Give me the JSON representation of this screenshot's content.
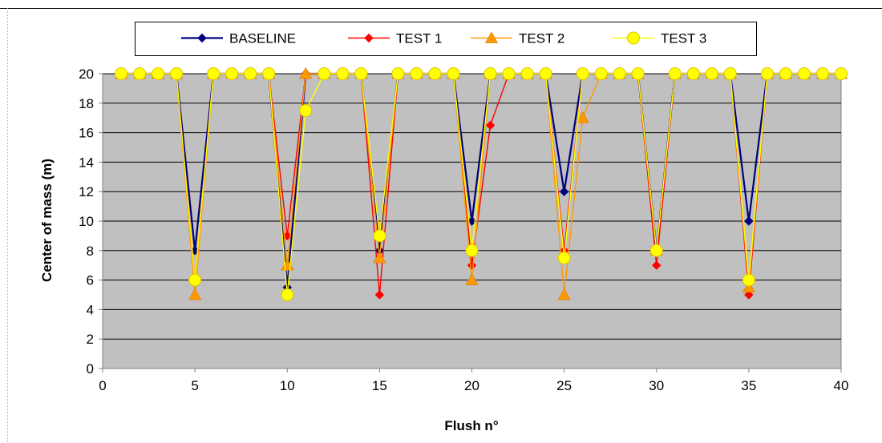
{
  "chart_data": {
    "type": "line",
    "title": "",
    "xlabel": "Flush n°",
    "ylabel": "Center of mass (m)",
    "xlim": [
      0,
      40
    ],
    "ylim": [
      0,
      20
    ],
    "x_ticks": [
      0,
      5,
      10,
      15,
      20,
      25,
      30,
      35,
      40
    ],
    "y_ticks": [
      0,
      2,
      4,
      6,
      8,
      10,
      12,
      14,
      16,
      18,
      20
    ],
    "grid": "horizontal",
    "legend_position": "top",
    "plot_background": "#c0c0c0",
    "series": [
      {
        "name": "BASELINE",
        "color": "#000080",
        "marker": "diamond",
        "points": [
          [
            1,
            20
          ],
          [
            2,
            20
          ],
          [
            3,
            20
          ],
          [
            4,
            20
          ],
          [
            5,
            8
          ],
          [
            6,
            20
          ],
          [
            7,
            20
          ],
          [
            8,
            20
          ],
          [
            9,
            20
          ],
          [
            10,
            5.5
          ],
          [
            11,
            20
          ],
          [
            12,
            20
          ],
          [
            13,
            20
          ],
          [
            14,
            20
          ],
          [
            15,
            8
          ],
          [
            16,
            20
          ],
          [
            17,
            20
          ],
          [
            18,
            20
          ],
          [
            19,
            20
          ],
          [
            20,
            10
          ],
          [
            21,
            20
          ],
          [
            22,
            20
          ],
          [
            23,
            20
          ],
          [
            24,
            20
          ],
          [
            25,
            12
          ],
          [
            26,
            20
          ],
          [
            27,
            20
          ],
          [
            28,
            20
          ],
          [
            29,
            20
          ],
          [
            30,
            8
          ],
          [
            31,
            20
          ],
          [
            32,
            20
          ],
          [
            33,
            20
          ],
          [
            34,
            20
          ],
          [
            35,
            10
          ],
          [
            36,
            20
          ],
          [
            37,
            20
          ],
          [
            38,
            20
          ],
          [
            39,
            20
          ],
          [
            40,
            20
          ]
        ]
      },
      {
        "name": "TEST 1",
        "color": "#ff0000",
        "marker": "diamond",
        "points": [
          [
            1,
            20
          ],
          [
            2,
            20
          ],
          [
            3,
            20
          ],
          [
            4,
            20
          ],
          [
            5,
            6
          ],
          [
            6,
            20
          ],
          [
            7,
            20
          ],
          [
            8,
            20
          ],
          [
            9,
            20
          ],
          [
            10,
            9
          ],
          [
            11,
            20
          ],
          [
            12,
            20
          ],
          [
            13,
            20
          ],
          [
            14,
            20
          ],
          [
            15,
            5
          ],
          [
            16,
            20
          ],
          [
            17,
            20
          ],
          [
            18,
            20
          ],
          [
            19,
            20
          ],
          [
            20,
            7
          ],
          [
            21,
            16.5
          ],
          [
            22,
            20
          ],
          [
            23,
            20
          ],
          [
            24,
            20
          ],
          [
            25,
            8
          ],
          [
            26,
            20
          ],
          [
            27,
            20
          ],
          [
            28,
            20
          ],
          [
            29,
            20
          ],
          [
            30,
            7
          ],
          [
            31,
            20
          ],
          [
            32,
            20
          ],
          [
            33,
            20
          ],
          [
            34,
            20
          ],
          [
            35,
            5
          ],
          [
            36,
            20
          ],
          [
            37,
            20
          ],
          [
            38,
            20
          ],
          [
            39,
            20
          ],
          [
            40,
            20
          ]
        ]
      },
      {
        "name": "TEST 2",
        "color": "#ff9900",
        "marker": "triangle",
        "points": [
          [
            1,
            20
          ],
          [
            2,
            20
          ],
          [
            3,
            20
          ],
          [
            4,
            20
          ],
          [
            5,
            5
          ],
          [
            6,
            20
          ],
          [
            7,
            20
          ],
          [
            8,
            20
          ],
          [
            9,
            20
          ],
          [
            10,
            7
          ],
          [
            11,
            20
          ],
          [
            12,
            20
          ],
          [
            13,
            20
          ],
          [
            14,
            20
          ],
          [
            15,
            7.5
          ],
          [
            16,
            20
          ],
          [
            17,
            20
          ],
          [
            18,
            20
          ],
          [
            19,
            20
          ],
          [
            20,
            6
          ],
          [
            21,
            20
          ],
          [
            22,
            20
          ],
          [
            23,
            20
          ],
          [
            24,
            20
          ],
          [
            25,
            5
          ],
          [
            26,
            17
          ],
          [
            27,
            20
          ],
          [
            28,
            20
          ],
          [
            29,
            20
          ],
          [
            30,
            8
          ],
          [
            31,
            20
          ],
          [
            32,
            20
          ],
          [
            33,
            20
          ],
          [
            34,
            20
          ],
          [
            35,
            5.5
          ],
          [
            36,
            20
          ],
          [
            37,
            20
          ],
          [
            38,
            20
          ],
          [
            39,
            20
          ],
          [
            40,
            20
          ]
        ]
      },
      {
        "name": "TEST 3",
        "color": "#ffff00",
        "marker": "circle",
        "points": [
          [
            1,
            20
          ],
          [
            2,
            20
          ],
          [
            3,
            20
          ],
          [
            4,
            20
          ],
          [
            5,
            6
          ],
          [
            6,
            20
          ],
          [
            7,
            20
          ],
          [
            8,
            20
          ],
          [
            9,
            20
          ],
          [
            10,
            5
          ],
          [
            11,
            17.5
          ],
          [
            12,
            20
          ],
          [
            13,
            20
          ],
          [
            14,
            20
          ],
          [
            15,
            9
          ],
          [
            16,
            20
          ],
          [
            17,
            20
          ],
          [
            18,
            20
          ],
          [
            19,
            20
          ],
          [
            20,
            8
          ],
          [
            21,
            20
          ],
          [
            22,
            20
          ],
          [
            23,
            20
          ],
          [
            24,
            20
          ],
          [
            25,
            7.5
          ],
          [
            26,
            20
          ],
          [
            27,
            20
          ],
          [
            28,
            20
          ],
          [
            29,
            20
          ],
          [
            30,
            8
          ],
          [
            31,
            20
          ],
          [
            32,
            20
          ],
          [
            33,
            20
          ],
          [
            34,
            20
          ],
          [
            35,
            6
          ],
          [
            36,
            20
          ],
          [
            37,
            20
          ],
          [
            38,
            20
          ],
          [
            39,
            20
          ],
          [
            40,
            20
          ]
        ]
      }
    ]
  }
}
